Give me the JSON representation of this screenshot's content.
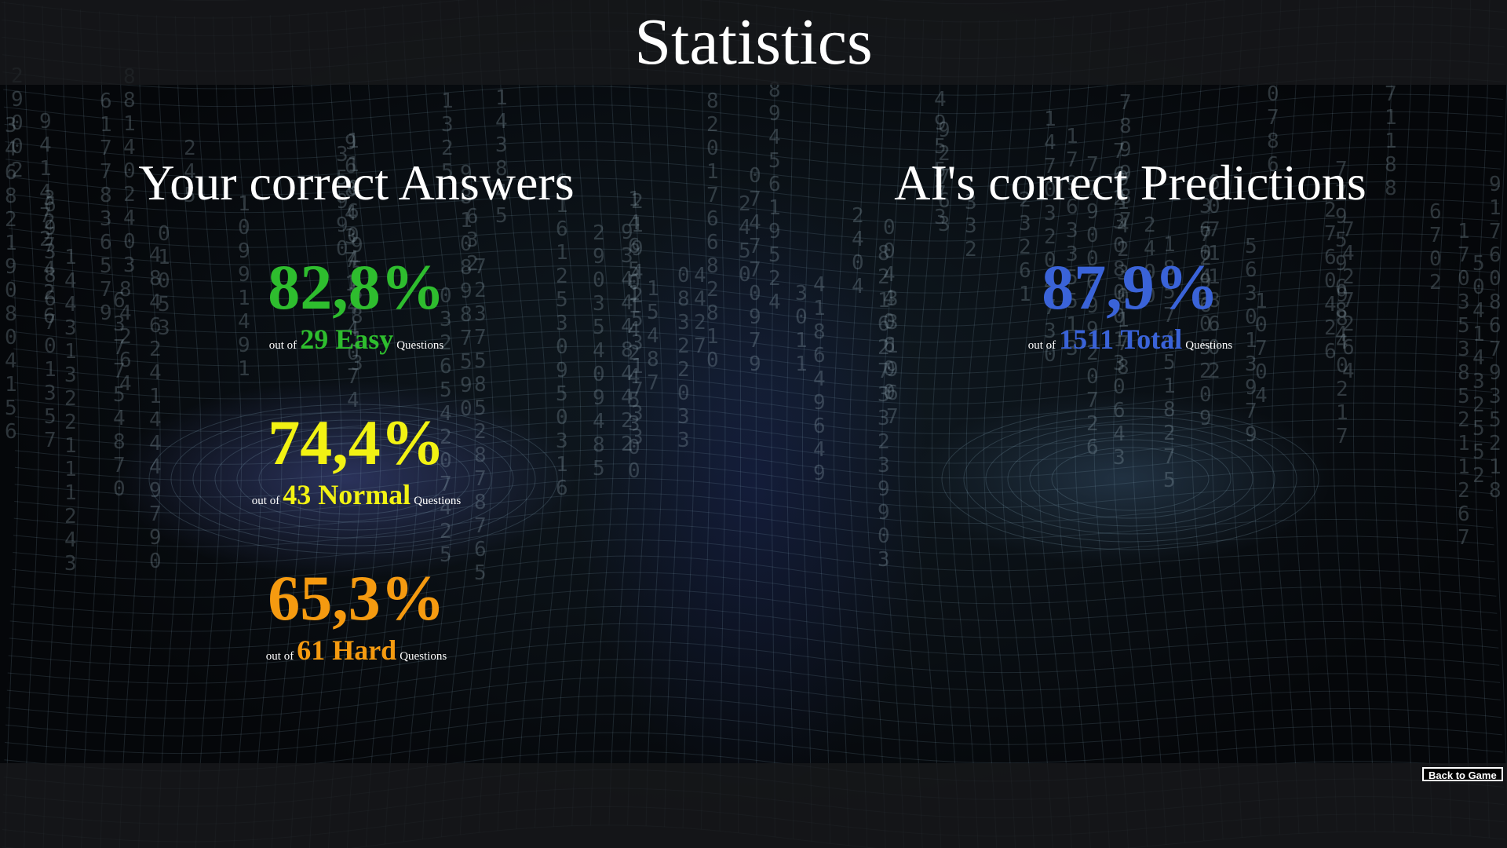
{
  "page": {
    "title": "Statistics"
  },
  "user_stats": {
    "heading": "Your correct Answers",
    "items": [
      {
        "percent": "82,8%",
        "prefix": "out of",
        "count_label": "29 Easy",
        "suffix": "Questions",
        "color": "#2ebd2e"
      },
      {
        "percent": "74,4%",
        "prefix": "out of",
        "count_label": "43 Normal",
        "suffix": "Questions",
        "color": "#f2f213"
      },
      {
        "percent": "65,3%",
        "prefix": "out of",
        "count_label": "61 Hard",
        "suffix": "Questions",
        "color": "#f59a10"
      }
    ]
  },
  "ai_stats": {
    "heading": "AI's correct Predictions",
    "items": [
      {
        "percent": "87,9%",
        "prefix": "out of",
        "count_label": "1511 Total",
        "suffix": "Questions",
        "color": "#3a63d8"
      }
    ]
  },
  "footer": {
    "back_label": "Back to Game"
  }
}
